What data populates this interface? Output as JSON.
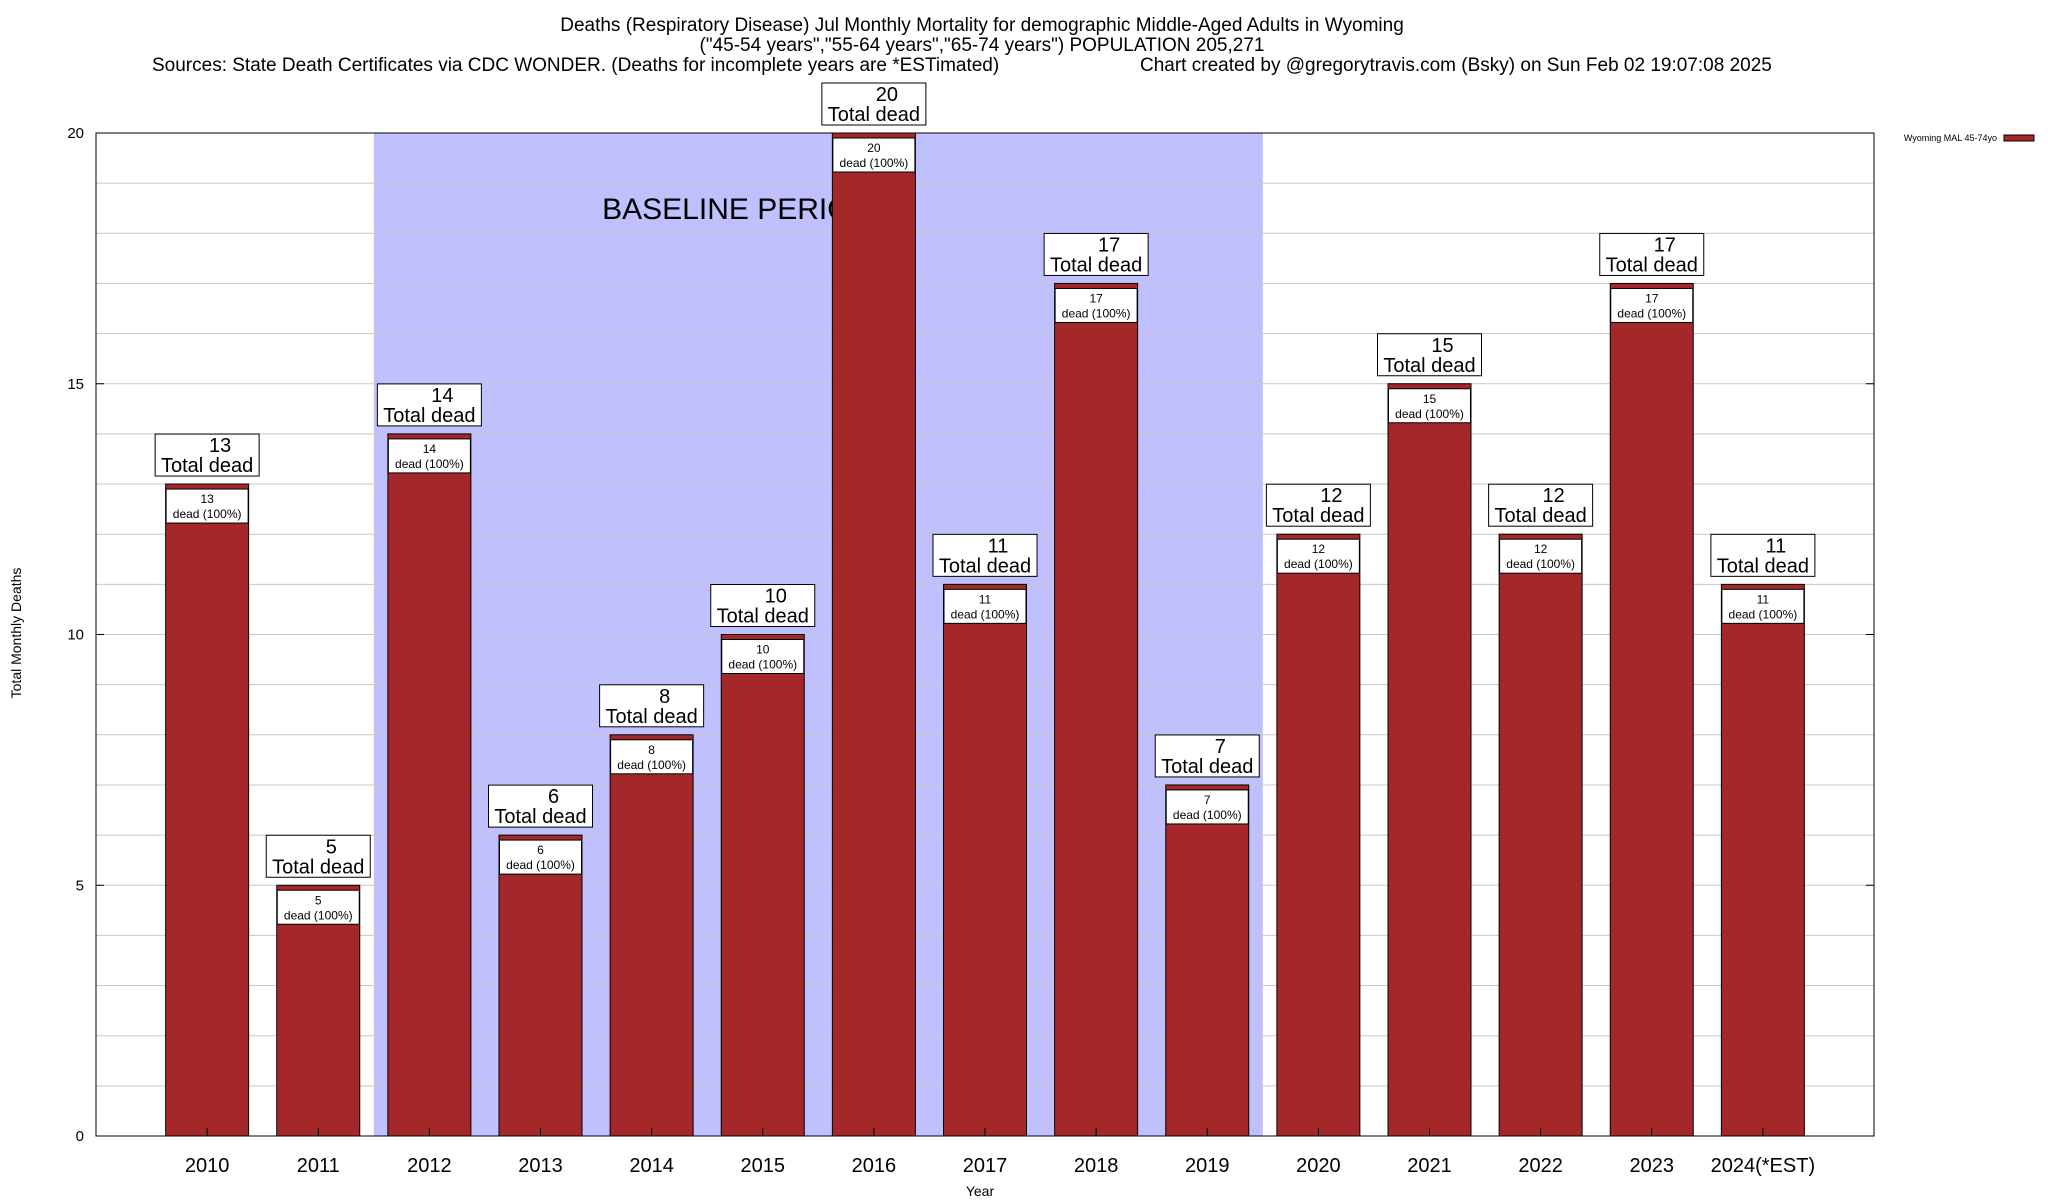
{
  "title": {
    "line1": "Deaths (Respiratory Disease) Jul Monthly Mortality for demographic Middle-Aged Adults in Wyoming",
    "line2": "(\"45-54 years\",\"55-64 years\",\"65-74 years\") POPULATION 205,271",
    "line3_left": "Sources: State Death Certificates via CDC WONDER. (Deaths for incomplete years are *ESTimated)",
    "line3_right": "Chart created by @gregorytravis.com (Bsky) on Sun Feb 02 19:07:08 2025"
  },
  "chart_data": {
    "type": "bar",
    "categories": [
      "2010",
      "2011",
      "2012",
      "2013",
      "2014",
      "2015",
      "2016",
      "2017",
      "2018",
      "2019",
      "2020",
      "2021",
      "2022",
      "2023",
      "2024(*EST)"
    ],
    "series": [
      {
        "name": "Wyoming MAL 45-74yo",
        "values": [
          13,
          5,
          14,
          6,
          8,
          10,
          20,
          11,
          17,
          7,
          12,
          15,
          12,
          17,
          11
        ]
      }
    ],
    "xlabel": "Year",
    "ylabel": "Total Monthly Deaths",
    "ylim": [
      0,
      20
    ],
    "yticks": [
      0,
      5,
      10,
      15,
      20
    ],
    "grid": true,
    "legend_position": "top-right",
    "top_label_text": "Total dead",
    "inner_label_text": "dead (100%)",
    "baseline": {
      "label": "BASELINE PERIOD",
      "from": "2012",
      "to": "2019"
    },
    "colors": {
      "bar": "#a4282a",
      "baseline": "#c0c0ff",
      "grid": "#c8c8c8"
    }
  }
}
